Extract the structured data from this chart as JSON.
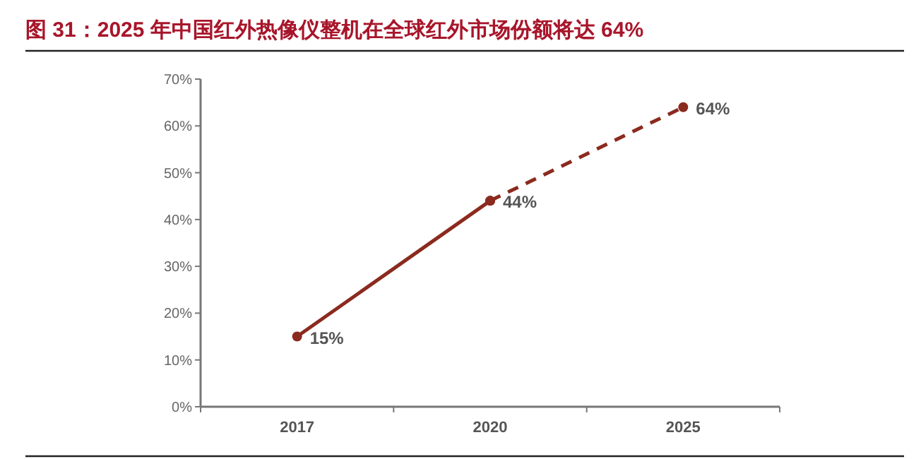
{
  "chart_data": {
    "type": "line",
    "title": "图 31：2025 年中国红外热像仪整机在全球红外市场份额将达 64%",
    "categories": [
      "2017",
      "2020",
      "2025"
    ],
    "series": [
      {
        "color": "#8b2a1e",
        "values": [
          15,
          44,
          null
        ],
        "value_labels": [
          "15%",
          "44%",
          null
        ],
        "line_style": "solid"
      },
      {
        "color": "#8b2a1e",
        "values": [
          null,
          44,
          64
        ],
        "value_labels": [
          null,
          null,
          "64%"
        ],
        "line_style": "dashed"
      }
    ],
    "ylim": [
      0,
      70
    ],
    "yticks": [
      {
        "value": 0,
        "label": "0%"
      },
      {
        "value": 10,
        "label": "10%"
      },
      {
        "value": 20,
        "label": "20%"
      },
      {
        "value": 30,
        "label": "30%"
      },
      {
        "value": 40,
        "label": "40%"
      },
      {
        "value": 50,
        "label": "50%"
      },
      {
        "value": 60,
        "label": "60%"
      },
      {
        "value": 70,
        "label": "70%"
      }
    ],
    "marker": "circle",
    "grid": false
  }
}
